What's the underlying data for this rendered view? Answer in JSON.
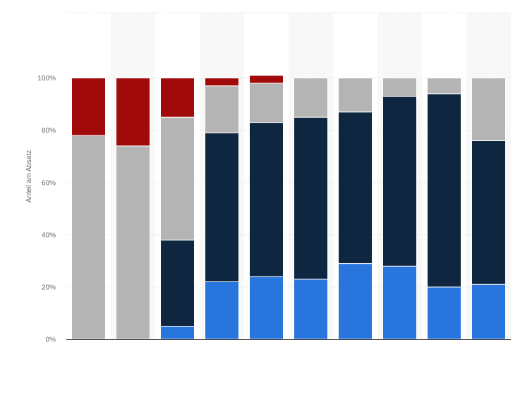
{
  "chart_data": {
    "type": "bar",
    "stacked": true,
    "categories": [
      "",
      "",
      "",
      "",
      "",
      "",
      "",
      "",
      "",
      ""
    ],
    "ylabel": "Anteil am Absatz",
    "xlabel": "",
    "ylim": [
      0,
      125
    ],
    "yticks": [
      0,
      20,
      40,
      60,
      80,
      100
    ],
    "ytick_labels": [
      "0%",
      "20%",
      "40%",
      "60%",
      "80%",
      "100%"
    ],
    "grid": true,
    "legend": "none",
    "colors": [
      "#2876dd",
      "#0f2640",
      "#b4b4b4",
      "#a10a0a"
    ],
    "band_color": "#f8f8f8",
    "series": [
      {
        "values": [
          0,
          0,
          5,
          22,
          24,
          23,
          29,
          28,
          20,
          21
        ]
      },
      {
        "values": [
          0,
          0,
          33,
          57,
          59,
          62,
          58,
          65,
          74,
          55
        ]
      },
      {
        "values": [
          78,
          74,
          47,
          18,
          15,
          15,
          13,
          7,
          6,
          24
        ]
      },
      {
        "values": [
          22,
          26,
          15,
          3,
          3,
          0,
          0,
          0,
          0,
          0
        ]
      }
    ]
  }
}
